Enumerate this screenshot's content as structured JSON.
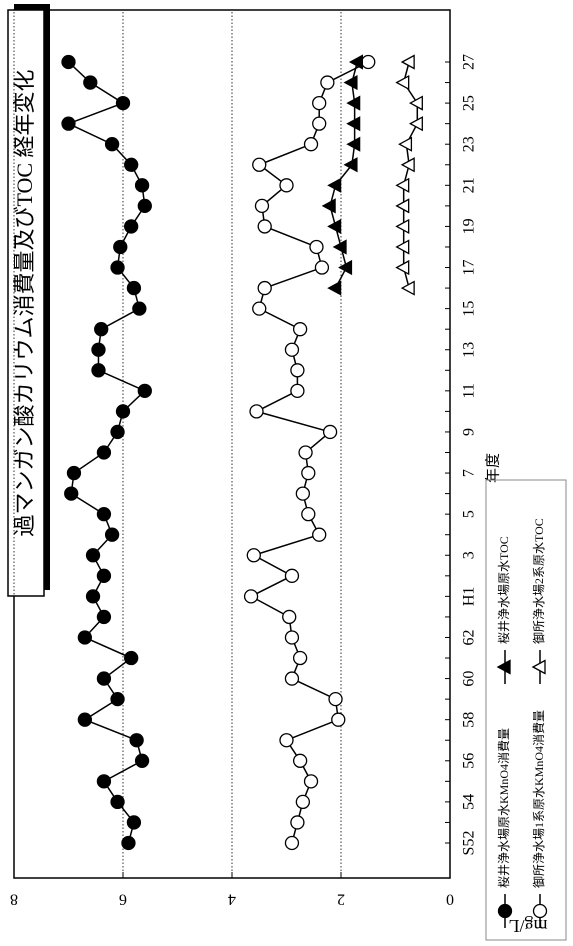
{
  "chart_data": {
    "type": "line",
    "title": "過マンガン酸カリウム消費量及びTOC 経年変化",
    "y_label": "mg/L",
    "x_label": "年度",
    "categories": [
      "S52",
      null,
      "54",
      null,
      "56",
      null,
      "58",
      null,
      "60",
      null,
      "62",
      null,
      "H1",
      null,
      "3",
      null,
      "5",
      null,
      "7",
      null,
      "9",
      null,
      "11",
      null,
      "13",
      null,
      "15",
      null,
      "17",
      null,
      "19",
      null,
      "21",
      null,
      "23",
      null,
      "25",
      null,
      "27"
    ],
    "ylim": [
      0,
      8
    ],
    "yticks": [
      0,
      2,
      4,
      6,
      8
    ],
    "grid": true,
    "series": [
      {
        "name": "桜井浄水場原水KMnO4消費量",
        "color": "#000000",
        "marker": "circle",
        "filled": true,
        "values": [
          5.9,
          5.8,
          6.1,
          6.35,
          5.65,
          5.75,
          6.7,
          6.1,
          6.35,
          5.85,
          6.7,
          6.35,
          6.55,
          6.35,
          6.55,
          6.2,
          6.35,
          6.95,
          6.9,
          6.35,
          6.1,
          6.0,
          5.6,
          6.45,
          6.45,
          6.4,
          5.7,
          5.8,
          6.1,
          6.05,
          5.85,
          5.6,
          5.65,
          5.85,
          6.2,
          7.0,
          6.0,
          6.6,
          7.0
        ]
      },
      {
        "name": "御所浄水場1系原水KMnO4消費量",
        "color": "#000000",
        "marker": "circle",
        "filled": false,
        "values": [
          2.9,
          2.8,
          2.7,
          2.55,
          2.75,
          3.0,
          2.05,
          2.1,
          2.9,
          2.75,
          2.9,
          2.95,
          3.65,
          2.9,
          3.6,
          2.4,
          2.6,
          2.7,
          2.6,
          2.65,
          2.2,
          3.55,
          2.8,
          2.8,
          2.9,
          2.75,
          3.5,
          3.4,
          2.35,
          2.45,
          3.4,
          3.45,
          3.0,
          3.5,
          2.55,
          2.4,
          2.4,
          2.25,
          1.5
        ]
      },
      {
        "name": "桜井浄水場原水TOC",
        "color": "#000000",
        "marker": "triangle",
        "filled": true,
        "values": [
          null,
          null,
          null,
          null,
          null,
          null,
          null,
          null,
          null,
          null,
          null,
          null,
          null,
          null,
          null,
          null,
          null,
          null,
          null,
          null,
          null,
          null,
          null,
          null,
          null,
          null,
          null,
          2.1,
          1.9,
          2.0,
          2.1,
          2.2,
          2.1,
          1.8,
          1.75,
          1.75,
          1.75,
          1.8,
          1.7
        ]
      },
      {
        "name": "御所浄水場2系原水TOC",
        "color": "#000000",
        "marker": "triangle",
        "filled": false,
        "values": [
          null,
          null,
          null,
          null,
          null,
          null,
          null,
          null,
          null,
          null,
          null,
          null,
          null,
          null,
          null,
          null,
          null,
          null,
          null,
          null,
          null,
          null,
          null,
          null,
          null,
          null,
          null,
          0.75,
          0.85,
          0.85,
          0.85,
          0.85,
          0.85,
          0.75,
          0.8,
          0.6,
          0.6,
          0.85,
          0.75
        ]
      }
    ]
  }
}
